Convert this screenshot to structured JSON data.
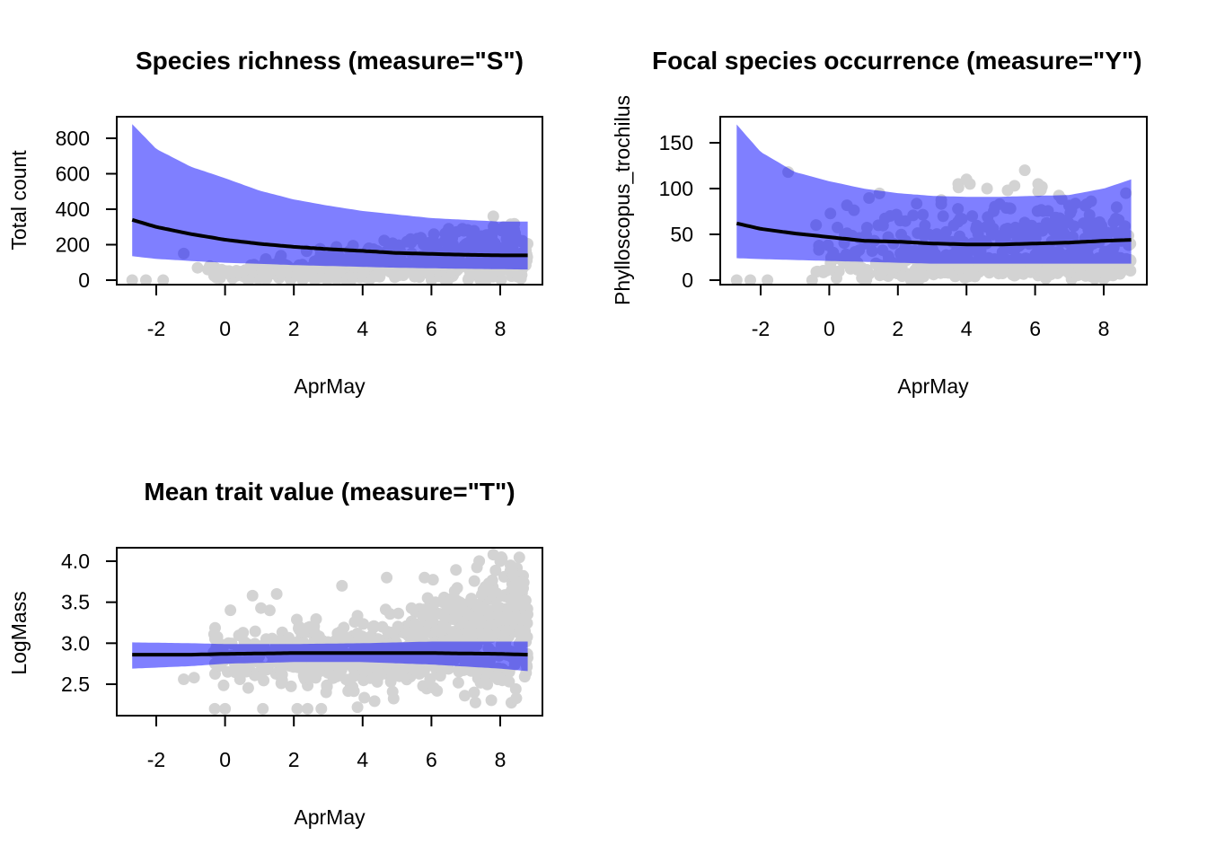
{
  "colors": {
    "band": "#8080ff",
    "band_opacity": 1,
    "points": "#d3d3d3",
    "points_overlap": "#6a6ae8",
    "line": "#000000"
  },
  "chart_data": [
    {
      "type": "scatter",
      "title": "Species richness (measure=\"S\")",
      "xlabel": "AprMay",
      "ylabel": "Total count",
      "xlim": [
        -2.8,
        9.0
      ],
      "ylim": [
        -15,
        900
      ],
      "xticks": [
        "-2",
        "0",
        "2",
        "4",
        "6",
        "8"
      ],
      "xtick_values": [
        -2,
        0,
        2,
        4,
        6,
        8
      ],
      "yticks": [
        "0",
        "200",
        "400",
        "600",
        "800"
      ],
      "ytick_values": [
        0,
        200,
        400,
        600,
        800
      ],
      "band": {
        "x": [
          -2.7,
          -2.0,
          -1.0,
          0.0,
          1.0,
          2.0,
          3.0,
          4.0,
          5.0,
          6.0,
          7.0,
          8.0,
          8.8
        ],
        "upper": [
          880,
          740,
          640,
          575,
          505,
          455,
          420,
          390,
          370,
          350,
          340,
          330,
          330
        ],
        "lower": [
          135,
          120,
          108,
          98,
          92,
          85,
          80,
          75,
          70,
          67,
          64,
          62,
          60
        ]
      },
      "fit": {
        "x": [
          -2.7,
          -2.0,
          -1.0,
          0.0,
          1.0,
          2.0,
          3.0,
          4.0,
          5.0,
          6.0,
          7.0,
          8.0,
          8.8
        ],
        "y": [
          340,
          300,
          260,
          228,
          205,
          188,
          175,
          165,
          153,
          148,
          143,
          140,
          140
        ]
      },
      "points_summary": {
        "x_range": [
          -2.7,
          8.8
        ],
        "y_range": [
          0,
          360
        ],
        "n_approx": 600
      }
    },
    {
      "type": "scatter",
      "title": "Focal species occurrence (measure=\"Y\")",
      "xlabel": "AprMay",
      "ylabel": "Phylloscopus_trochilus",
      "xlim": [
        -2.8,
        9.0
      ],
      "ylim": [
        -5,
        180
      ],
      "xticks": [
        "-2",
        "0",
        "2",
        "4",
        "6",
        "8"
      ],
      "xtick_values": [
        -2,
        0,
        2,
        4,
        6,
        8
      ],
      "yticks": [
        "0",
        "50",
        "100",
        "150"
      ],
      "ytick_values": [
        0,
        50,
        100,
        150
      ],
      "band": {
        "x": [
          -2.7,
          -2.0,
          -1.0,
          0.0,
          1.0,
          2.0,
          3.0,
          4.0,
          5.0,
          6.0,
          7.0,
          8.0,
          8.8
        ],
        "upper": [
          170,
          140,
          118,
          108,
          100,
          95,
          92,
          91,
          91,
          92,
          93,
          100,
          110
        ],
        "lower": [
          24,
          23,
          22,
          21,
          20,
          19,
          18,
          18,
          18,
          18,
          18,
          18,
          18
        ]
      },
      "fit": {
        "x": [
          -2.7,
          -2.0,
          -1.0,
          0.0,
          1.0,
          2.0,
          3.0,
          4.0,
          5.0,
          6.0,
          7.0,
          8.0,
          8.8
        ],
        "y": [
          62,
          56,
          51,
          47,
          43,
          42,
          40,
          39,
          39,
          40,
          41,
          43,
          44
        ]
      },
      "points_summary": {
        "x_range": [
          -2.7,
          8.8
        ],
        "y_range": [
          0,
          120
        ],
        "n_approx": 600
      }
    },
    {
      "type": "scatter",
      "title": "Mean trait value (measure=\"T\")",
      "xlabel": "AprMay",
      "ylabel": "LogMass",
      "xlim": [
        -2.8,
        9.0
      ],
      "ylim": [
        2.12,
        4.15
      ],
      "xticks": [
        "-2",
        "0",
        "2",
        "4",
        "6",
        "8"
      ],
      "xtick_values": [
        -2,
        0,
        2,
        4,
        6,
        8
      ],
      "yticks": [
        "2.5",
        "3.0",
        "3.5",
        "4.0"
      ],
      "ytick_values": [
        2.5,
        3.0,
        3.5,
        4.0
      ],
      "band": {
        "x": [
          -2.7,
          -1.0,
          0.0,
          2.0,
          4.0,
          6.0,
          8.0,
          8.8
        ],
        "upper": [
          3.01,
          3.0,
          2.99,
          2.99,
          3.0,
          3.02,
          3.02,
          3.02
        ],
        "lower": [
          2.69,
          2.72,
          2.75,
          2.77,
          2.77,
          2.74,
          2.69,
          2.66
        ]
      },
      "fit": {
        "x": [
          -2.7,
          -1.0,
          0.0,
          2.0,
          4.0,
          6.0,
          8.0,
          8.8
        ],
        "y": [
          2.86,
          2.86,
          2.87,
          2.88,
          2.88,
          2.88,
          2.87,
          2.86
        ]
      },
      "points_summary": {
        "x_range": [
          -1.2,
          8.8
        ],
        "y_range": [
          2.2,
          4.1
        ],
        "n_approx": 900
      }
    }
  ]
}
